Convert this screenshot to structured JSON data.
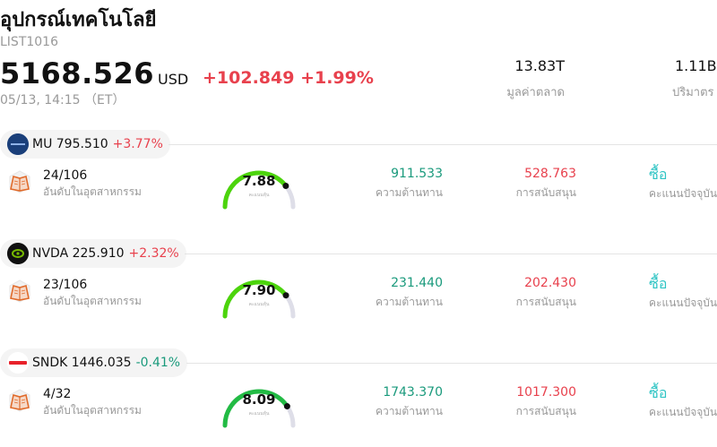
{
  "header": {
    "title": "อุปกรณ์เทคโนโลยี",
    "code": "LIST1016",
    "price": "5168.526",
    "currency": "USD",
    "change": "+102.849 +1.99%",
    "time": "05/13, 14:15 （ET）",
    "market_cap_value": "13.83T",
    "market_cap_label": "มูลค่าตลาด",
    "volume_value": "1.11B",
    "volume_label": "ปริมาตร"
  },
  "labels": {
    "rank": "อันดับในอุตสาหกรรม",
    "score": "คะแนนหุ้น",
    "resistance": "ความต้านทาน",
    "support": "การสนับสนุน",
    "rating": "คะแนนปัจจุบัน"
  },
  "stocks": [
    {
      "ticker_price": "MU 795.510",
      "change": "+3.77%",
      "direction": "up",
      "rank": "24/106",
      "score": "7.88",
      "score_value": 7.88,
      "resistance": "911.533",
      "support": "528.763",
      "rating": "ซื้อ",
      "logo": "micron-logo",
      "logo_color": "#1a3f7a",
      "gauge_color": "#4cd40c"
    },
    {
      "ticker_price": "NVDA 225.910",
      "change": "+2.32%",
      "direction": "up",
      "rank": "23/106",
      "score": "7.90",
      "score_value": 7.9,
      "resistance": "231.440",
      "support": "202.430",
      "rating": "ซื้อ",
      "logo": "nvidia-logo",
      "logo_color": "#111111",
      "gauge_color": "#4cd40c"
    },
    {
      "ticker_price": "SNDK 1446.035",
      "change": "-0.41%",
      "direction": "down",
      "rank": "4/32",
      "score": "8.09",
      "score_value": 8.09,
      "resistance": "1743.370",
      "support": "1017.300",
      "rating": "ซื้อ",
      "logo": "sandisk-logo",
      "logo_color": "#e8222b",
      "gauge_color": "#22bb44"
    }
  ],
  "colors": {
    "up": "#e8414d",
    "down": "#1a9a7c",
    "rating": "#2ec4c4",
    "gauge_track": "#dedee8"
  }
}
